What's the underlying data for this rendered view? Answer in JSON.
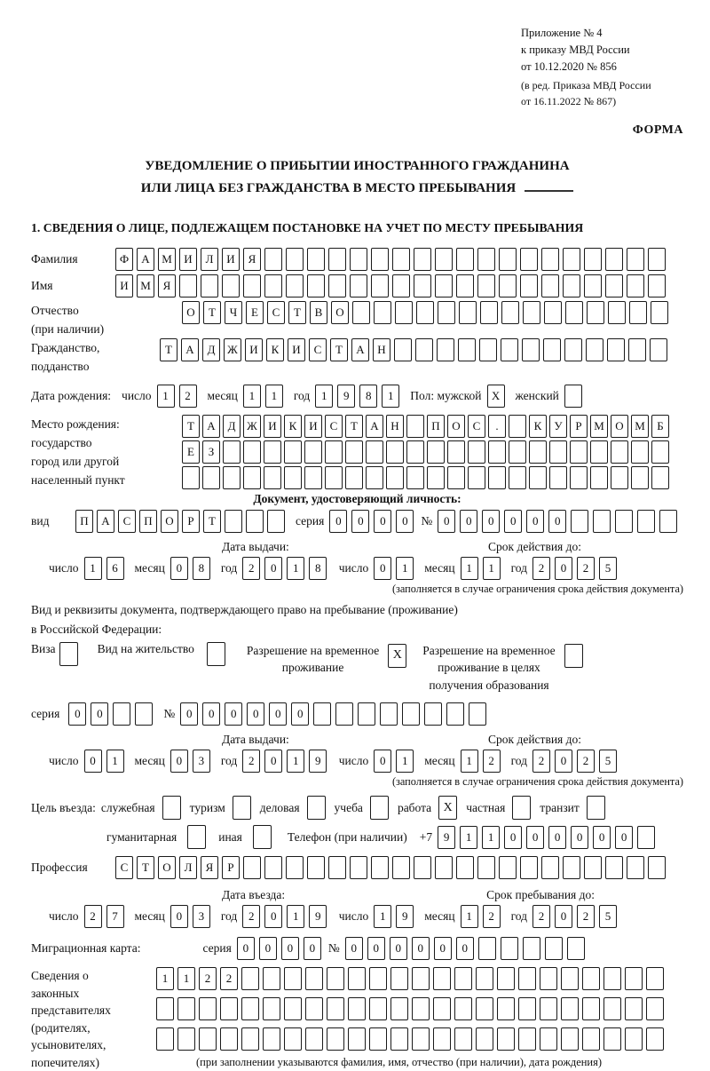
{
  "meta": {
    "annex_lines": [
      "Приложение № 4",
      "к приказу МВД России",
      "от 10.12.2020 № 856"
    ],
    "edit_lines": [
      "(в ред. Приказа МВД России",
      "от 16.11.2022 № 867)"
    ],
    "forma": "ФОРМА"
  },
  "title": {
    "line1": "УВЕДОМЛЕНИЕ О ПРИБЫТИИ ИНОСТРАННОГО ГРАЖДАНИНА",
    "line2": "ИЛИ ЛИЦА БЕЗ ГРАЖДАНСТВА В МЕСТО ПРЕБЫВАНИЯ"
  },
  "section1_heading": "1. СВЕДЕНИЯ О ЛИЦЕ, ПОДЛЕЖАЩЕМ ПОСТАНОВКЕ НА УЧЕТ ПО МЕСТУ ПРЕБЫВАНИЯ",
  "labels": {
    "den": "число",
    "mes": "месяц",
    "god": "год",
    "seriya": "серия",
    "num": "№"
  },
  "surname": {
    "label": "Фамилия",
    "value": "ФАМИЛИЯ",
    "count": 26
  },
  "given_name": {
    "label": "Имя",
    "value": "ИМЯ",
    "count": 26
  },
  "patronymic": {
    "label1": "Отчество",
    "label2": "(при наличии)",
    "value": "ОТЧЕСТВО",
    "count": 23
  },
  "citizenship": {
    "label1": "Гражданство,",
    "label2": "подданство",
    "value": "ТАДЖИКИСТАН",
    "count": 24
  },
  "birth": {
    "label": "Дата рождения:",
    "day": {
      "value": "12",
      "count": 2
    },
    "month": {
      "value": "11",
      "count": 2
    },
    "year": {
      "value": "1981",
      "count": 4
    },
    "sex_label": "Пол: мужской",
    "male": {
      "value": "X",
      "count": 1
    },
    "female_label": "женский",
    "female": {
      "value": "",
      "count": 1
    }
  },
  "birth_place": {
    "labels": [
      "Место рождения:",
      "государство",
      "город или другой",
      "населенный пункт"
    ],
    "row1": {
      "value": "ТАДЖИКИСТАН ПОС. КУРМОМБ",
      "count": 24
    },
    "row2": {
      "value": "ЕЗ",
      "count": 24
    },
    "row3": {
      "value": "",
      "count": 24
    }
  },
  "id_doc": {
    "heading": "Документ, удостоверяющий личность:",
    "vid_label": "вид",
    "vid": {
      "value": "ПАСПОРТ",
      "count": 10
    },
    "series": {
      "value": "0000",
      "count": 4
    },
    "number": {
      "value": "000000",
      "count": 11
    },
    "issue_heading": "Дата выдачи:",
    "issue": {
      "day": {
        "value": "16",
        "count": 2
      },
      "month": {
        "value": "08",
        "count": 2
      },
      "year": {
        "value": "2018",
        "count": 4
      }
    },
    "expiry_heading": "Срок действия до:",
    "expiry": {
      "day": {
        "value": "01",
        "count": 2
      },
      "month": {
        "value": "11",
        "count": 2
      },
      "year": {
        "value": "2025",
        "count": 4
      }
    },
    "note": "(заполняется в случае ограничения срока действия документа)"
  },
  "residence": {
    "line1": "Вид и реквизиты документа, подтверждающего право на пребывание (проживание)",
    "line2": "в Российской Федерации:",
    "visa": {
      "label": "Виза",
      "checked": false
    },
    "permit": {
      "label": "Вид на жительство",
      "checked": false
    },
    "temp": {
      "label1": "Разрешение на временное",
      "label2": "проживание",
      "checked": true
    },
    "temp_edu": {
      "label1": "Разрешение на временное",
      "label2": "проживание в целях",
      "label3": "получения образования",
      "checked": false
    },
    "series": {
      "value": "00",
      "count": 4
    },
    "number": {
      "value": "000000",
      "count": 14
    },
    "issue_heading": "Дата выдачи:",
    "issue": {
      "day": {
        "value": "01",
        "count": 2
      },
      "month": {
        "value": "03",
        "count": 2
      },
      "year": {
        "value": "2019",
        "count": 4
      }
    },
    "expiry_heading": "Срок действия до:",
    "expiry": {
      "day": {
        "value": "01",
        "count": 2
      },
      "month": {
        "value": "12",
        "count": 2
      },
      "year": {
        "value": "2025",
        "count": 4
      }
    },
    "note": "(заполняется в случае ограничения срока действия документа)"
  },
  "purpose": {
    "label": "Цель въезда:",
    "row1": [
      {
        "label": "служебная",
        "checked": false
      },
      {
        "label": "туризм",
        "checked": false
      },
      {
        "label": "деловая",
        "checked": false
      },
      {
        "label": "учеба",
        "checked": false
      },
      {
        "label": "работа",
        "checked": true
      },
      {
        "label": "частная",
        "checked": false
      },
      {
        "label": "транзит",
        "checked": false
      }
    ],
    "row2": [
      {
        "label": "гуманитарная",
        "checked": false
      },
      {
        "label": "иная",
        "checked": false
      }
    ]
  },
  "phone": {
    "label": "Телефон (при наличии)",
    "prefix": "+7",
    "cells": {
      "value": "911000000",
      "count": 10
    }
  },
  "profession": {
    "label": "Профессия",
    "value": "СТОЛЯР",
    "count": 26
  },
  "entry_block": {
    "issue_heading": "Дата въезда:",
    "issue": {
      "day": {
        "value": "27",
        "count": 2
      },
      "month": {
        "value": "03",
        "count": 2
      },
      "year": {
        "value": "2019",
        "count": 4
      }
    },
    "expiry_heading": "Срок пребывания до:",
    "expiry": {
      "day": {
        "value": "19",
        "count": 2
      },
      "month": {
        "value": "12",
        "count": 2
      },
      "year": {
        "value": "2025",
        "count": 4
      }
    }
  },
  "migration_card": {
    "label": "Миграционная карта:",
    "series": {
      "value": "0000",
      "count": 4
    },
    "number": {
      "value": "000000",
      "count": 11
    }
  },
  "legal_reps": {
    "labels": [
      "Сведения о",
      "законных",
      "представителях",
      "(родителях,",
      "усыновителях,",
      "попечителях)"
    ],
    "row1": {
      "value": "1122",
      "count": 24
    },
    "row2": {
      "value": "",
      "count": 24
    },
    "row3": {
      "value": "",
      "count": 24
    },
    "note": "(при заполнении указываются фамилия, имя, отчество (при наличии), дата рождения)"
  }
}
